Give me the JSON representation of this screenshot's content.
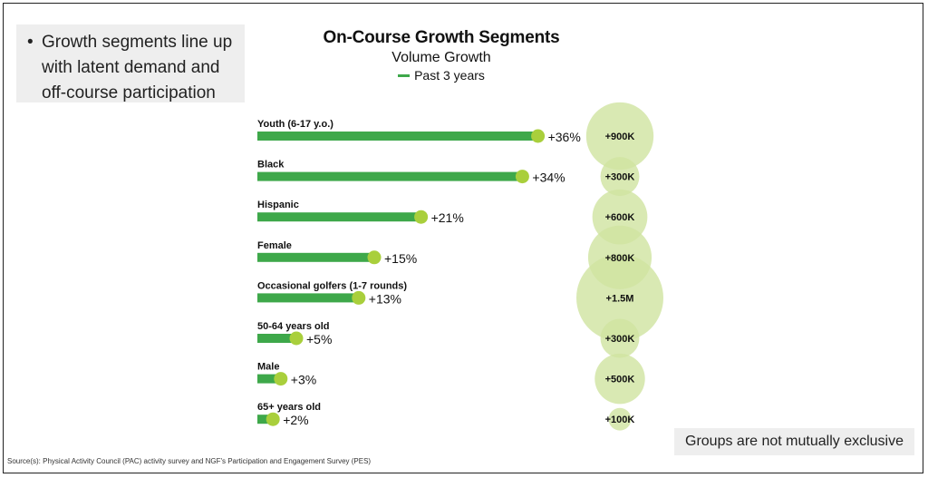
{
  "callout": {
    "bullet": "•",
    "text": "Growth segments line up with latent demand and off-course participation"
  },
  "header": {
    "title": "On-Course Growth Segments",
    "subtitle": "Volume Growth",
    "legend_label": "Past 3 years"
  },
  "note": "Groups are not mutually exclusive",
  "source": "Source(s): Physical Activity Council (PAC) activity survey and NGF's Participation and Engagement Survey (PES)",
  "colors": {
    "bar": "#3ea84a",
    "dot": "#a9cf3c",
    "bubble": "#cfe3a0"
  },
  "chart_data": {
    "type": "bar",
    "orientation": "horizontal",
    "title": "On-Course Growth Segments",
    "subtitle": "Volume Growth",
    "legend": [
      "Past 3 years"
    ],
    "categories": [
      "Youth (6-17 y.o.)",
      "Black",
      "Hispanic",
      "Female",
      "Occasional golfers (1-7 rounds)",
      "50-64 years old",
      "Male",
      "65+ years old"
    ],
    "series": [
      {
        "name": "Past 3 years",
        "values": [
          36,
          34,
          21,
          15,
          13,
          5,
          3,
          2
        ]
      }
    ],
    "value_labels": [
      "+36%",
      "+34%",
      "+21%",
      "+15%",
      "+13%",
      "+5%",
      "+3%",
      "+2%"
    ],
    "bubbles": {
      "values": [
        900000,
        300000,
        600000,
        800000,
        1500000,
        300000,
        500000,
        100000
      ],
      "labels": [
        "+900K",
        "+300K",
        "+600K",
        "+800K",
        "+1.5M",
        "+300K",
        "+500K",
        "+100K"
      ]
    },
    "xlim": [
      0,
      36
    ]
  }
}
